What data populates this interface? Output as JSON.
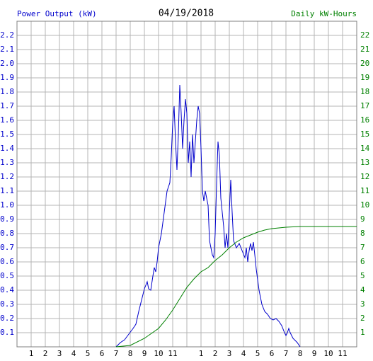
{
  "chart_data": {
    "type": "line",
    "title": "04/19/2018",
    "y_label": "Power Output (kW)",
    "y2_label": "Daily kW-Hours",
    "y_label_color": "#0000cc",
    "y2_label_color": "#008000",
    "grid": true,
    "xlim": [
      0,
      24
    ],
    "xticks": [
      1,
      2,
      3,
      4,
      5,
      6,
      7,
      8,
      9,
      10,
      11,
      {
        "value": 12,
        "label": null
      },
      {
        "value": 13,
        "label": "1"
      },
      {
        "value": 14,
        "label": "2"
      },
      {
        "value": 15,
        "label": "3"
      },
      {
        "value": 16,
        "label": "4"
      },
      {
        "value": 17,
        "label": "5"
      },
      {
        "value": 18,
        "label": "6"
      },
      {
        "value": 19,
        "label": "7"
      },
      {
        "value": 20,
        "label": "8"
      },
      {
        "value": 21,
        "label": "9"
      },
      {
        "value": 22,
        "label": "10"
      },
      {
        "value": 23,
        "label": "11"
      }
    ],
    "ylim": [
      0,
      2.3
    ],
    "yticks": [
      0.1,
      0.2,
      0.3,
      0.4,
      0.5,
      0.6,
      0.7,
      0.8,
      0.9,
      {
        "value": 1,
        "label": "1.0"
      },
      1.1,
      1.2,
      1.3,
      1.4,
      1.5,
      1.6,
      1.7,
      1.8,
      1.9,
      {
        "value": 2,
        "label": "2.0"
      },
      2.1,
      2.2
    ],
    "y2lim": [
      0,
      23
    ],
    "y2ticks": [
      1,
      2,
      3,
      4,
      5,
      6,
      7,
      8,
      9,
      10,
      11,
      12,
      13,
      14,
      15,
      16,
      17,
      18,
      19,
      20,
      21,
      22
    ],
    "series": [
      {
        "color": "#0000cc",
        "x": [
          7.0,
          7.3,
          7.6,
          7.9,
          8.2,
          8.4,
          8.6,
          8.8,
          9.0,
          9.2,
          9.3,
          9.45,
          9.6,
          9.7,
          9.8,
          9.9,
          10.0,
          10.2,
          10.4,
          10.6,
          10.8,
          10.9,
          11.0,
          11.1,
          11.2,
          11.3,
          11.4,
          11.5,
          11.6,
          11.7,
          11.8,
          11.9,
          12.0,
          12.1,
          12.2,
          12.3,
          12.4,
          12.5,
          12.6,
          12.7,
          12.8,
          12.9,
          13.0,
          13.1,
          13.2,
          13.3,
          13.4,
          13.5,
          13.6,
          13.7,
          13.8,
          13.9,
          14.0,
          14.1,
          14.2,
          14.3,
          14.4,
          14.5,
          14.6,
          14.7,
          14.8,
          14.9,
          15.0,
          15.1,
          15.2,
          15.3,
          15.5,
          15.7,
          15.9,
          16.1,
          16.2,
          16.3,
          16.4,
          16.5,
          16.6,
          16.7,
          16.8,
          16.9,
          17.1,
          17.3,
          17.5,
          17.7,
          17.9,
          18.1,
          18.3,
          18.5,
          18.7,
          18.9,
          19.0,
          19.1,
          19.2,
          19.3,
          19.5,
          19.8,
          20.0
        ],
        "values": [
          0,
          0.03,
          0.05,
          0.09,
          0.13,
          0.16,
          0.25,
          0.33,
          0.41,
          0.46,
          0.41,
          0.4,
          0.5,
          0.56,
          0.53,
          0.6,
          0.7,
          0.8,
          0.95,
          1.1,
          1.16,
          1.35,
          1.58,
          1.7,
          1.45,
          1.25,
          1.5,
          1.85,
          1.65,
          1.4,
          1.6,
          1.75,
          1.65,
          1.3,
          1.45,
          1.2,
          1.5,
          1.3,
          1.45,
          1.6,
          1.7,
          1.65,
          1.4,
          1.1,
          1.03,
          1.1,
          1.05,
          1.0,
          0.75,
          0.7,
          0.65,
          0.63,
          0.8,
          1.15,
          1.45,
          1.35,
          1.05,
          0.95,
          0.85,
          0.7,
          0.8,
          0.7,
          0.95,
          1.18,
          0.95,
          0.75,
          0.7,
          0.73,
          0.68,
          0.63,
          0.7,
          0.6,
          0.68,
          0.73,
          0.68,
          0.74,
          0.65,
          0.55,
          0.4,
          0.3,
          0.25,
          0.23,
          0.2,
          0.19,
          0.2,
          0.18,
          0.15,
          0.1,
          0.08,
          0.1,
          0.13,
          0.1,
          0.06,
          0.03,
          0
        ]
      },
      {
        "color": "#008000",
        "axis": "y2",
        "x": [
          7,
          8,
          9,
          10,
          10.5,
          11,
          11.5,
          12,
          12.5,
          13,
          13.5,
          14,
          14.5,
          15,
          15.5,
          16,
          16.5,
          17,
          17.5,
          18,
          19,
          20,
          24
        ],
        "values": [
          0,
          0.1,
          0.6,
          1.3,
          1.9,
          2.6,
          3.4,
          4.2,
          4.8,
          5.3,
          5.6,
          6.1,
          6.5,
          7.0,
          7.4,
          7.7,
          7.9,
          8.1,
          8.25,
          8.35,
          8.45,
          8.5,
          8.5
        ]
      }
    ]
  }
}
